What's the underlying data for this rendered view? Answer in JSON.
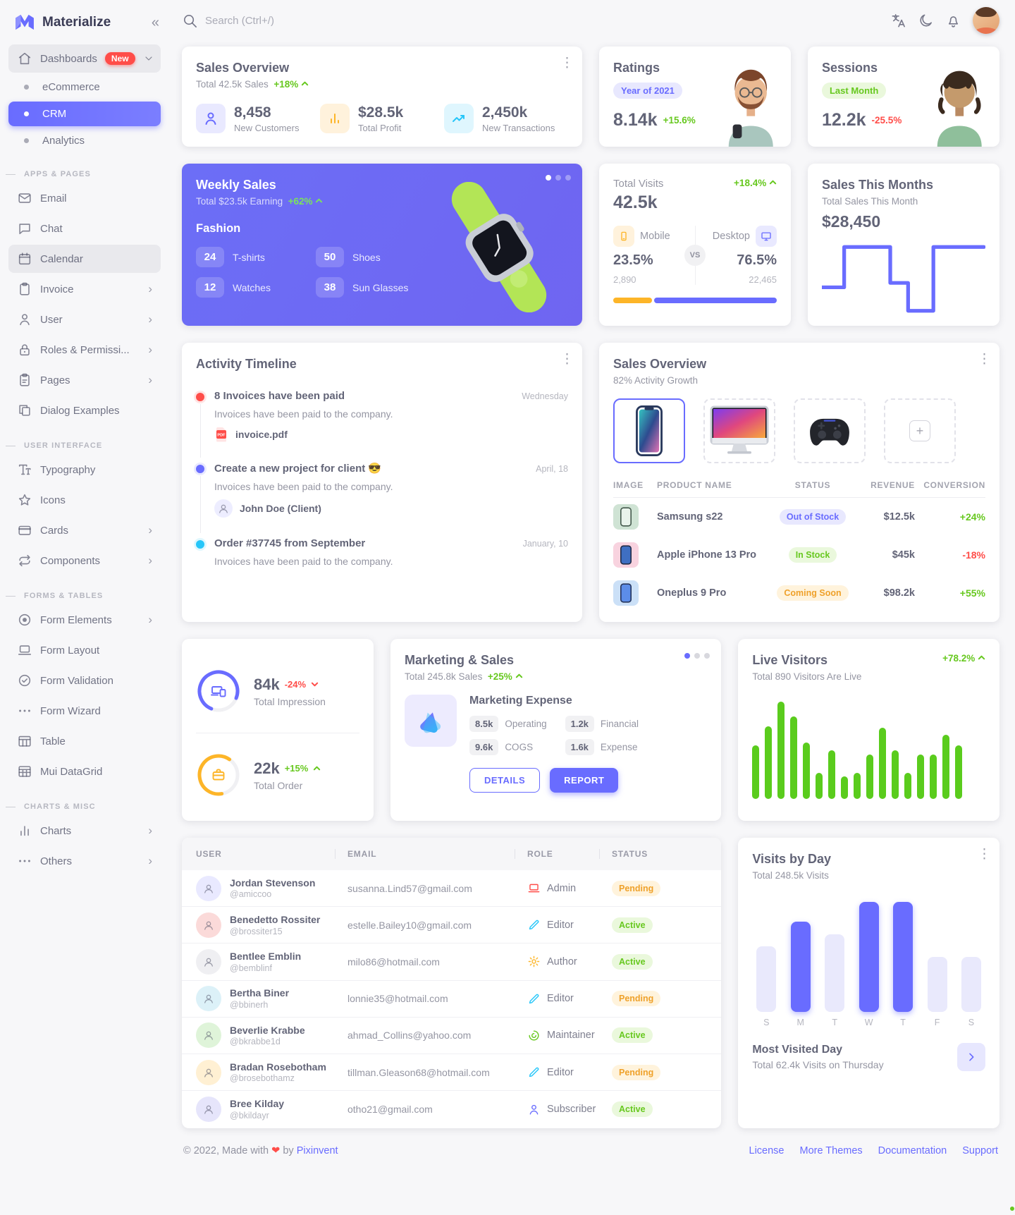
{
  "app": {
    "name": "Materialize",
    "collapse_icon": "«"
  },
  "header": {
    "search_placeholder": "Search (Ctrl+/)"
  },
  "sidebar": {
    "dashboards": {
      "label": "Dashboards",
      "badge": "New"
    },
    "dash_items": [
      {
        "label": "eCommerce"
      },
      {
        "label": "CRM"
      },
      {
        "label": "Analytics"
      }
    ],
    "sections": [
      {
        "title": "APPS & PAGES",
        "items": [
          {
            "label": "Email",
            "icon": "mail-icon"
          },
          {
            "label": "Chat",
            "icon": "chat-icon"
          },
          {
            "label": "Calendar",
            "icon": "calendar-icon"
          },
          {
            "label": "Invoice",
            "icon": "clipboard-icon",
            "arrow": "›"
          },
          {
            "label": "User",
            "icon": "user-icon",
            "arrow": "›"
          },
          {
            "label": "Roles & Permissi...",
            "icon": "lock-icon",
            "arrow": "›"
          },
          {
            "label": "Pages",
            "icon": "pages-icon",
            "arrow": "›"
          },
          {
            "label": "Dialog Examples",
            "icon": "copy-icon"
          }
        ]
      },
      {
        "title": "USER INTERFACE",
        "items": [
          {
            "label": "Typography",
            "icon": "typography-icon"
          },
          {
            "label": "Icons",
            "icon": "star-icon"
          },
          {
            "label": "Cards",
            "icon": "card-icon",
            "arrow": "›"
          },
          {
            "label": "Components",
            "icon": "repeat-icon",
            "arrow": "›"
          }
        ]
      },
      {
        "title": "FORMS & TABLES",
        "items": [
          {
            "label": "Form Elements",
            "icon": "radio-icon",
            "arrow": "›"
          },
          {
            "label": "Form Layout",
            "icon": "laptop-icon"
          },
          {
            "label": "Form Validation",
            "icon": "check-circle-icon"
          },
          {
            "label": "Form Wizard",
            "icon": "dots-icon"
          },
          {
            "label": "Table",
            "icon": "table-icon"
          },
          {
            "label": "Mui DataGrid",
            "icon": "grid-icon"
          }
        ]
      },
      {
        "title": "CHARTS & MISC",
        "items": [
          {
            "label": "Charts",
            "icon": "bar-chart-icon",
            "arrow": "›"
          },
          {
            "label": "Others",
            "icon": "dots-icon",
            "arrow": "›"
          }
        ]
      }
    ]
  },
  "sales_overview": {
    "title": "Sales Overview",
    "total_label": "Total 42.5k Sales",
    "delta": "+18%",
    "stats": [
      {
        "value": "8,458",
        "label": "New Customers",
        "icon": "person-icon"
      },
      {
        "value": "$28.5k",
        "label": "Total Profit",
        "icon": "bar-chart-icon"
      },
      {
        "value": "2,450k",
        "label": "New Transactions",
        "icon": "trending-up-icon"
      }
    ]
  },
  "ratings": {
    "title": "Ratings",
    "badge": "Year of 2021",
    "value": "8.14k",
    "delta": "+15.6%"
  },
  "sessions": {
    "title": "Sessions",
    "badge": "Last Month",
    "value": "12.2k",
    "delta": "-25.5%"
  },
  "weekly_sales": {
    "title": "Weekly Sales",
    "subtitle": "Total $23.5k Earning",
    "delta": "+62%",
    "category": "Fashion",
    "chips": [
      {
        "value": "24",
        "label": "T-shirts"
      },
      {
        "value": "50",
        "label": "Shoes"
      },
      {
        "value": "12",
        "label": "Watches"
      },
      {
        "value": "38",
        "label": "Sun Glasses"
      }
    ]
  },
  "total_visits": {
    "title": "Total Visits",
    "delta": "+18.4%",
    "value": "42.5k",
    "mobile_label": "Mobile",
    "mobile_pct": "23.5%",
    "mobile_count": "2,890",
    "vs": "VS",
    "desktop_label": "Desktop",
    "desktop_pct": "76.5%",
    "desktop_count": "22,465"
  },
  "sales_month": {
    "title": "Sales This Months",
    "subtitle": "Total Sales This Month",
    "value": "$28,450"
  },
  "activity": {
    "title": "Activity Timeline",
    "items": [
      {
        "title": "8 Invoices have been paid",
        "time": "Wednesday",
        "desc": "Invoices have been paid to the company.",
        "attachment": "invoice.pdf"
      },
      {
        "title": "Create a new project for client 😎",
        "time": "April, 18",
        "desc": "Invoices have been paid to the company.",
        "person": "John Doe (Client)"
      },
      {
        "title": "Order #37745 from September",
        "time": "January, 10",
        "desc": "Invoices have been paid to the company."
      }
    ]
  },
  "sales_overview2": {
    "title": "Sales Overview",
    "subtitle": "82% Activity Growth",
    "columns": [
      "IMAGE",
      "PRODUCT NAME",
      "STATUS",
      "REVENUE",
      "CONVERSION"
    ],
    "rows": [
      {
        "name": "Samsung s22",
        "status": "Out of Stock",
        "revenue": "$12.5k",
        "conversion": "+24%"
      },
      {
        "name": "Apple iPhone 13 Pro",
        "status": "In Stock",
        "revenue": "$45k",
        "conversion": "-18%"
      },
      {
        "name": "Oneplus 9 Pro",
        "status": "Coming Soon",
        "revenue": "$98.2k",
        "conversion": "+55%"
      }
    ]
  },
  "impressions": {
    "value": "84k",
    "delta": "-24%",
    "label": "Total Impression"
  },
  "orders": {
    "value": "22k",
    "delta": "+15%",
    "label": "Total Order"
  },
  "marketing": {
    "title": "Marketing & Sales",
    "total_label": "Total 245.8k Sales",
    "delta": "+25%",
    "expense_title": "Marketing Expense",
    "chips": [
      {
        "value": "8.5k",
        "label": "Operating"
      },
      {
        "value": "1.2k",
        "label": "Financial"
      },
      {
        "value": "9.6k",
        "label": "COGS"
      },
      {
        "value": "1.6k",
        "label": "Expense"
      }
    ],
    "details_btn": "DETAILS",
    "report_btn": "REPORT"
  },
  "live_visitors": {
    "title": "Live Visitors",
    "delta": "+78.2%",
    "subtitle": "Total 890 Visitors Are Live"
  },
  "users_table": {
    "columns": [
      "USER",
      "EMAIL",
      "ROLE",
      "STATUS"
    ],
    "rows": [
      {
        "name": "Jordan Stevenson",
        "handle": "@amiccoo",
        "email": "susanna.Lind57@gmail.com",
        "role": "Admin",
        "role_icon": "laptop-icon",
        "status": "Pending"
      },
      {
        "name": "Benedetto Rossiter",
        "handle": "@brossiter15",
        "email": "estelle.Bailey10@gmail.com",
        "role": "Editor",
        "role_icon": "pencil-icon",
        "status": "Active"
      },
      {
        "name": "Bentlee Emblin",
        "handle": "@bemblinf",
        "email": "milo86@hotmail.com",
        "role": "Author",
        "role_icon": "gear-icon",
        "status": "Active"
      },
      {
        "name": "Bertha Biner",
        "handle": "@bbinerh",
        "email": "lonnie35@hotmail.com",
        "role": "Editor",
        "role_icon": "pencil-icon",
        "status": "Pending"
      },
      {
        "name": "Beverlie Krabbe",
        "handle": "@bkrabbe1d",
        "email": "ahmad_Collins@yahoo.com",
        "role": "Maintainer",
        "role_icon": "donut-chart-icon",
        "status": "Active"
      },
      {
        "name": "Bradan Rosebotham",
        "handle": "@brosebothamz",
        "email": "tillman.Gleason68@hotmail.com",
        "role": "Editor",
        "role_icon": "pencil-icon",
        "status": "Pending"
      },
      {
        "name": "Bree Kilday",
        "handle": "@bkildayr",
        "email": "otho21@gmail.com",
        "role": "Subscriber",
        "role_icon": "person-icon",
        "status": "Active"
      }
    ]
  },
  "visits_by_day": {
    "title": "Visits by Day",
    "subtitle": "Total 248.5k Visits",
    "footer_title": "Most Visited Day",
    "footer_sub": "Total 62.4k Visits on Thursday"
  },
  "footer": {
    "copyright": "© 2022, Made with",
    "heart": "❤",
    "by": "by",
    "brand": "Pixinvent",
    "links": [
      "License",
      "More Themes",
      "Documentation",
      "Support"
    ]
  },
  "chart_data": [
    {
      "type": "line",
      "title": "Sales This Months",
      "ylabel": "",
      "points": [
        [
          0,
          61
        ],
        [
          30,
          61
        ],
        [
          30,
          6
        ],
        [
          92,
          6
        ],
        [
          92,
          55
        ],
        [
          116,
          55
        ],
        [
          116,
          93
        ],
        [
          150,
          93
        ],
        [
          150,
          6
        ],
        [
          218,
          6
        ]
      ],
      "color": "#696CFF"
    },
    {
      "type": "bar",
      "title": "Live Visitors",
      "values": [
        55,
        75,
        100,
        85,
        58,
        27,
        50,
        23,
        27,
        46,
        73,
        50,
        27,
        46,
        46,
        66,
        55
      ],
      "color": "#5ACC1D"
    },
    {
      "type": "bar",
      "title": "Visits by Day",
      "categories": [
        "S",
        "M",
        "T",
        "W",
        "T",
        "F",
        "S"
      ],
      "values": [
        52,
        72,
        62,
        90,
        100,
        44,
        44
      ],
      "highlight": [
        0,
        1,
        0,
        1,
        1,
        0,
        0
      ],
      "colors": {
        "highlight": "#696CFF",
        "normal": "#E9E9FC"
      }
    }
  ]
}
